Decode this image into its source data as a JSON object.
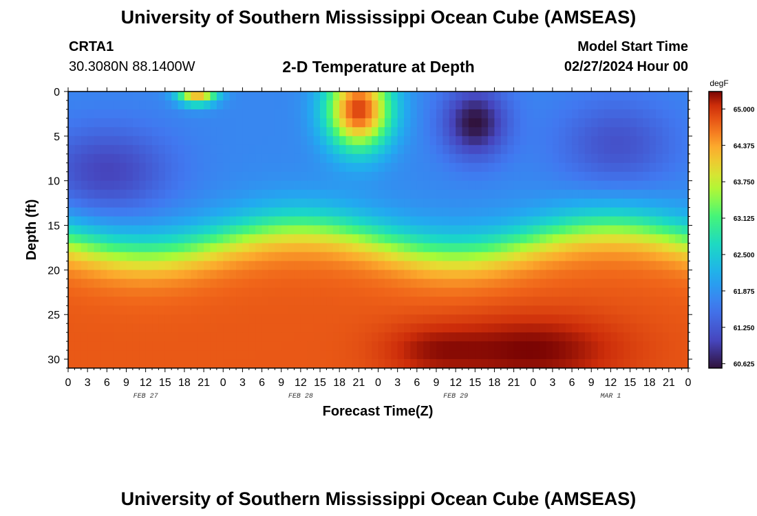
{
  "page": {
    "title": "University of Southern Mississippi Ocean Cube (AMSEAS)",
    "footer_title": "University of Southern Mississippi Ocean Cube (AMSEAS)"
  },
  "station": {
    "id": "CRTA1",
    "coords": "30.3080N  88.1400W"
  },
  "model": {
    "start_label": "Model Start Time",
    "start_value": "02/27/2024 Hour 00"
  },
  "chart_data": {
    "type": "heatmap",
    "title": "2-D Temperature at Depth",
    "xlabel": "Forecast Time(Z)",
    "ylabel": "Depth (ft)",
    "x_hours_range": [
      0,
      96
    ],
    "ylim": [
      0,
      31
    ],
    "y_inverted": true,
    "x_tick_labels": [
      "0",
      "3",
      "6",
      "9",
      "12",
      "15",
      "18",
      "21",
      "0",
      "3",
      "6",
      "9",
      "12",
      "15",
      "18",
      "21",
      "0",
      "3",
      "6",
      "9",
      "12",
      "15",
      "18",
      "21",
      "0",
      "3",
      "6",
      "9",
      "12",
      "15",
      "18",
      "21",
      "0"
    ],
    "date_labels": [
      {
        "label": "FEB 27",
        "hour": 12
      },
      {
        "label": "FEB 28",
        "hour": 36
      },
      {
        "label": "FEB 29",
        "hour": 60
      },
      {
        "label": "MAR 1",
        "hour": 84
      }
    ],
    "y_tick_labels": [
      "0",
      "5",
      "10",
      "15",
      "20",
      "25",
      "30"
    ],
    "y_tick_values": [
      0,
      5,
      10,
      15,
      20,
      25,
      30
    ],
    "colorbar": {
      "unit": "degF",
      "min": 60.55,
      "max": 65.3,
      "tick_labels": [
        "65.000",
        "64.375",
        "63.750",
        "63.125",
        "62.500",
        "61.875",
        "61.250",
        "60.625"
      ],
      "tick_values": [
        65.0,
        64.375,
        63.75,
        63.125,
        62.5,
        61.875,
        61.25,
        60.625
      ]
    },
    "features": [
      {
        "name": "surface cold pool",
        "hour": 6,
        "depth": 9,
        "temp": 61.0
      },
      {
        "name": "surface warm spot",
        "hour": 20,
        "depth": 0,
        "temp": 64.6
      },
      {
        "name": "warm plume",
        "hour": 45,
        "depth": 2,
        "temp": 64.9
      },
      {
        "name": "cold core",
        "hour": 63,
        "depth": 3.5,
        "temp": 60.6
      },
      {
        "name": "cool patch",
        "hour": 85,
        "depth": 6,
        "temp": 61.2
      },
      {
        "name": "deep warm maximum",
        "hour": 72,
        "depth": 30,
        "temp": 65.3
      }
    ]
  }
}
